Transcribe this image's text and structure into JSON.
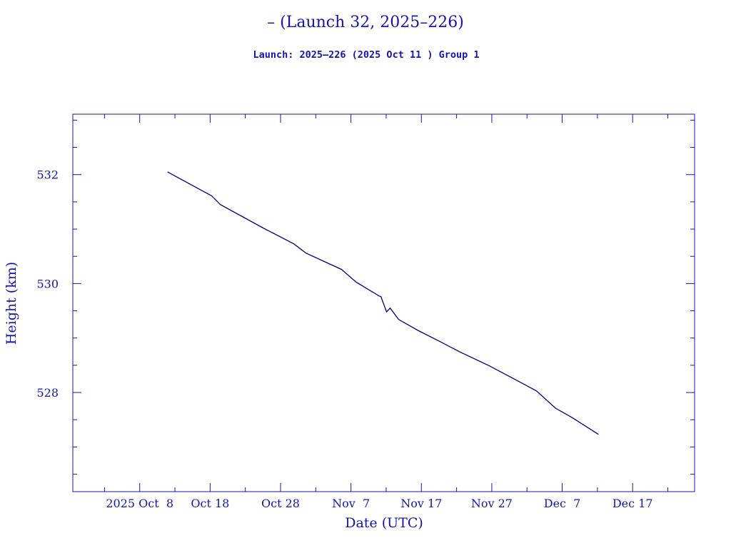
{
  "chart_data": {
    "type": "line",
    "title": "– (Launch 32, 2025–226)",
    "subtitle": "Launch: 2025–226  (2025 Oct 11 )  Group 1",
    "xlabel": "Date (UTC)",
    "ylabel": "Height (km)",
    "x_units": "days since 2025 Oct 8 (UTC)",
    "xlim": [
      -9.5,
      78.8
    ],
    "ylim": [
      526.18,
      533.11
    ],
    "x_major_ticks": [
      0,
      10,
      20,
      30,
      40,
      50,
      60,
      70
    ],
    "x_tick_labels": [
      "2025 Oct  8",
      "Oct 18",
      "Oct 28",
      "Nov  7",
      "Nov 17",
      "Nov 27",
      "Dec  7",
      "Dec 17"
    ],
    "x_minor_step": 5,
    "y_major_ticks": [
      528,
      530,
      532
    ],
    "y_tick_labels": [
      "528",
      "530",
      "532"
    ],
    "y_minor_step": 0.5,
    "grid": false,
    "colors": {
      "text": "#1414b4",
      "axes": "#1414b4",
      "line": "#000080"
    },
    "series": [
      {
        "name": "height",
        "x": [
          3.95,
          8.92,
          10.23,
          11.45,
          17.53,
          21.88,
          23.61,
          28.67,
          30.7,
          34.04,
          34.25,
          35.06,
          35.56,
          36.78,
          39.51,
          42.86,
          45.39,
          49.65,
          54.31,
          56.33,
          59.07,
          61.4,
          65.15
        ],
        "y": [
          532.05,
          531.7,
          531.61,
          531.45,
          531.02,
          530.73,
          530.56,
          530.26,
          530.03,
          529.77,
          529.76,
          529.48,
          529.55,
          529.34,
          529.14,
          528.92,
          528.75,
          528.49,
          528.17,
          528.03,
          527.71,
          527.54,
          527.23
        ]
      }
    ]
  }
}
